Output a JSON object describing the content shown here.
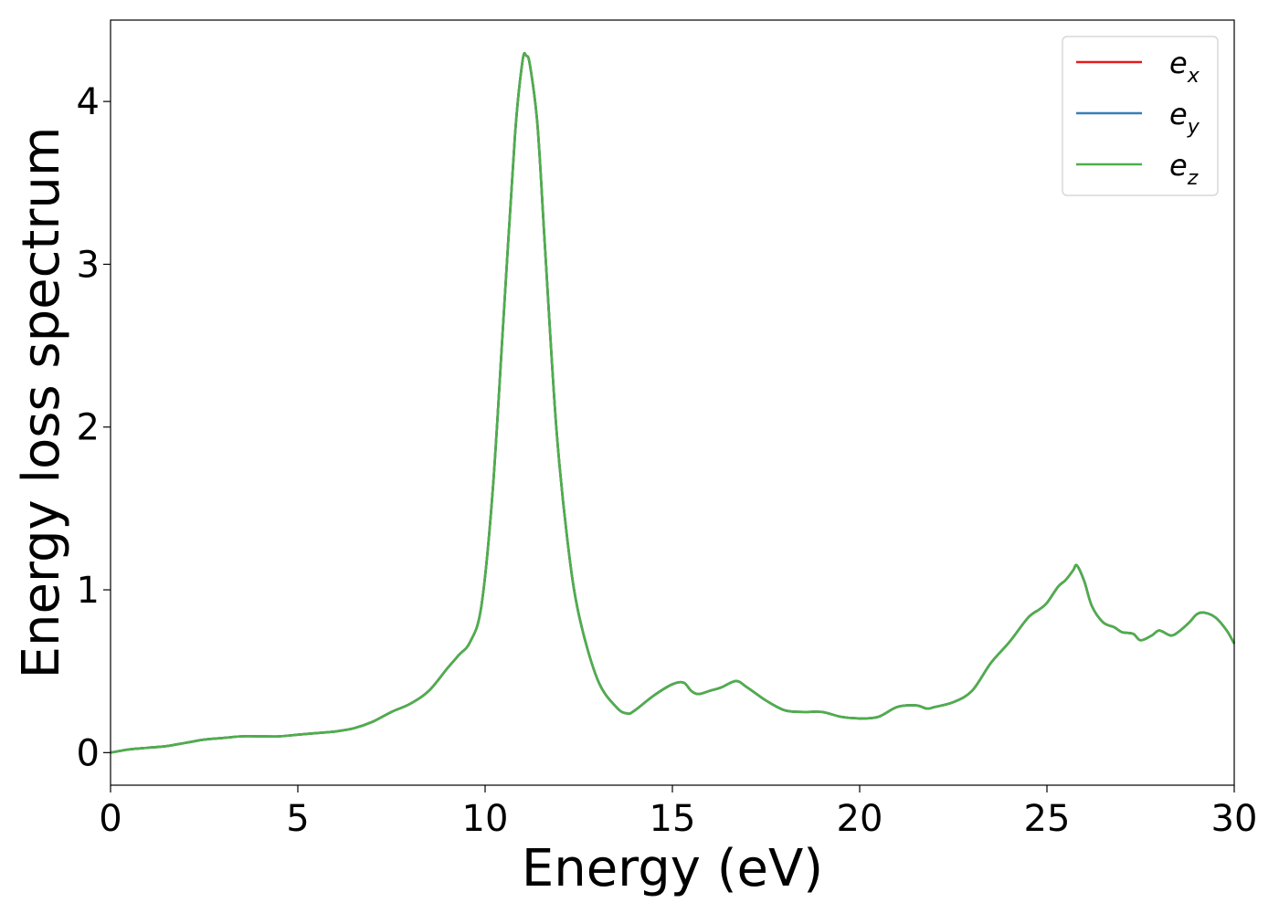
{
  "chart_data": {
    "type": "line",
    "title": "",
    "xlabel": "Energy (eV)",
    "ylabel": "Energy loss spectrum",
    "xlim": [
      0,
      30
    ],
    "ylim": [
      -0.2,
      4.5
    ],
    "xticks": [
      0,
      5,
      10,
      15,
      20,
      25,
      30
    ],
    "yticks": [
      0,
      1,
      2,
      3,
      4
    ],
    "grid": false,
    "legend_position": "top-right",
    "x": [
      0,
      0.5,
      1,
      1.5,
      2,
      2.5,
      3,
      3.5,
      4,
      4.5,
      5,
      5.5,
      6,
      6.5,
      7,
      7.5,
      8,
      8.5,
      9,
      9.3,
      9.6,
      9.9,
      10.2,
      10.5,
      10.8,
      11.0,
      11.1,
      11.2,
      11.4,
      11.6,
      11.9,
      12.2,
      12.5,
      13.0,
      13.5,
      13.8,
      14.0,
      14.5,
      15.0,
      15.3,
      15.5,
      15.7,
      16.0,
      16.3,
      16.7,
      17.0,
      17.5,
      18.0,
      18.5,
      19.0,
      19.5,
      20.0,
      20.5,
      21.0,
      21.5,
      21.8,
      22.0,
      22.5,
      23.0,
      23.5,
      24.0,
      24.5,
      24.8,
      25.0,
      25.3,
      25.5,
      25.7,
      25.8,
      26.0,
      26.2,
      26.5,
      26.8,
      27.0,
      27.3,
      27.5,
      27.8,
      28.0,
      28.3,
      28.5,
      28.8,
      29.0,
      29.2,
      29.5,
      29.8,
      30.0
    ],
    "series": [
      {
        "name": "e_x",
        "label_base": "e",
        "label_sub": "x",
        "color": "#e41a1c",
        "values": [
          0.0,
          0.02,
          0.03,
          0.04,
          0.06,
          0.08,
          0.09,
          0.1,
          0.1,
          0.1,
          0.11,
          0.12,
          0.13,
          0.15,
          0.19,
          0.25,
          0.3,
          0.38,
          0.52,
          0.6,
          0.68,
          0.9,
          1.6,
          2.7,
          3.8,
          4.25,
          4.28,
          4.22,
          3.85,
          3.1,
          2.0,
          1.3,
          0.85,
          0.45,
          0.28,
          0.24,
          0.26,
          0.35,
          0.42,
          0.43,
          0.38,
          0.36,
          0.38,
          0.4,
          0.44,
          0.4,
          0.32,
          0.26,
          0.25,
          0.25,
          0.22,
          0.21,
          0.22,
          0.28,
          0.29,
          0.27,
          0.28,
          0.31,
          0.38,
          0.55,
          0.68,
          0.83,
          0.88,
          0.92,
          1.02,
          1.06,
          1.12,
          1.15,
          1.05,
          0.9,
          0.8,
          0.77,
          0.74,
          0.73,
          0.69,
          0.72,
          0.75,
          0.72,
          0.74,
          0.8,
          0.85,
          0.86,
          0.83,
          0.75,
          0.67
        ]
      },
      {
        "name": "e_y",
        "label_base": "e",
        "label_sub": "y",
        "color": "#377eb8",
        "values": [
          0.0,
          0.02,
          0.03,
          0.04,
          0.06,
          0.08,
          0.09,
          0.1,
          0.1,
          0.1,
          0.11,
          0.12,
          0.13,
          0.15,
          0.19,
          0.25,
          0.3,
          0.38,
          0.52,
          0.6,
          0.68,
          0.9,
          1.6,
          2.7,
          3.8,
          4.25,
          4.28,
          4.22,
          3.85,
          3.1,
          2.0,
          1.3,
          0.85,
          0.45,
          0.28,
          0.24,
          0.26,
          0.35,
          0.42,
          0.43,
          0.38,
          0.36,
          0.38,
          0.4,
          0.44,
          0.4,
          0.32,
          0.26,
          0.25,
          0.25,
          0.22,
          0.21,
          0.22,
          0.28,
          0.29,
          0.27,
          0.28,
          0.31,
          0.38,
          0.55,
          0.68,
          0.83,
          0.88,
          0.92,
          1.02,
          1.06,
          1.12,
          1.15,
          1.05,
          0.9,
          0.8,
          0.77,
          0.74,
          0.73,
          0.69,
          0.72,
          0.75,
          0.72,
          0.74,
          0.8,
          0.85,
          0.86,
          0.83,
          0.75,
          0.67
        ]
      },
      {
        "name": "e_z",
        "label_base": "e",
        "label_sub": "z",
        "color": "#4daf4a",
        "values": [
          0.0,
          0.02,
          0.03,
          0.04,
          0.06,
          0.08,
          0.09,
          0.1,
          0.1,
          0.1,
          0.11,
          0.12,
          0.13,
          0.15,
          0.19,
          0.25,
          0.3,
          0.38,
          0.52,
          0.6,
          0.68,
          0.9,
          1.6,
          2.7,
          3.8,
          4.25,
          4.28,
          4.22,
          3.85,
          3.1,
          2.0,
          1.3,
          0.85,
          0.45,
          0.28,
          0.24,
          0.26,
          0.35,
          0.42,
          0.43,
          0.38,
          0.36,
          0.38,
          0.4,
          0.44,
          0.4,
          0.32,
          0.26,
          0.25,
          0.25,
          0.22,
          0.21,
          0.22,
          0.28,
          0.29,
          0.27,
          0.28,
          0.31,
          0.38,
          0.55,
          0.68,
          0.83,
          0.88,
          0.92,
          1.02,
          1.06,
          1.12,
          1.15,
          1.05,
          0.9,
          0.8,
          0.77,
          0.74,
          0.73,
          0.69,
          0.72,
          0.75,
          0.72,
          0.74,
          0.8,
          0.85,
          0.86,
          0.83,
          0.75,
          0.67
        ]
      }
    ]
  }
}
